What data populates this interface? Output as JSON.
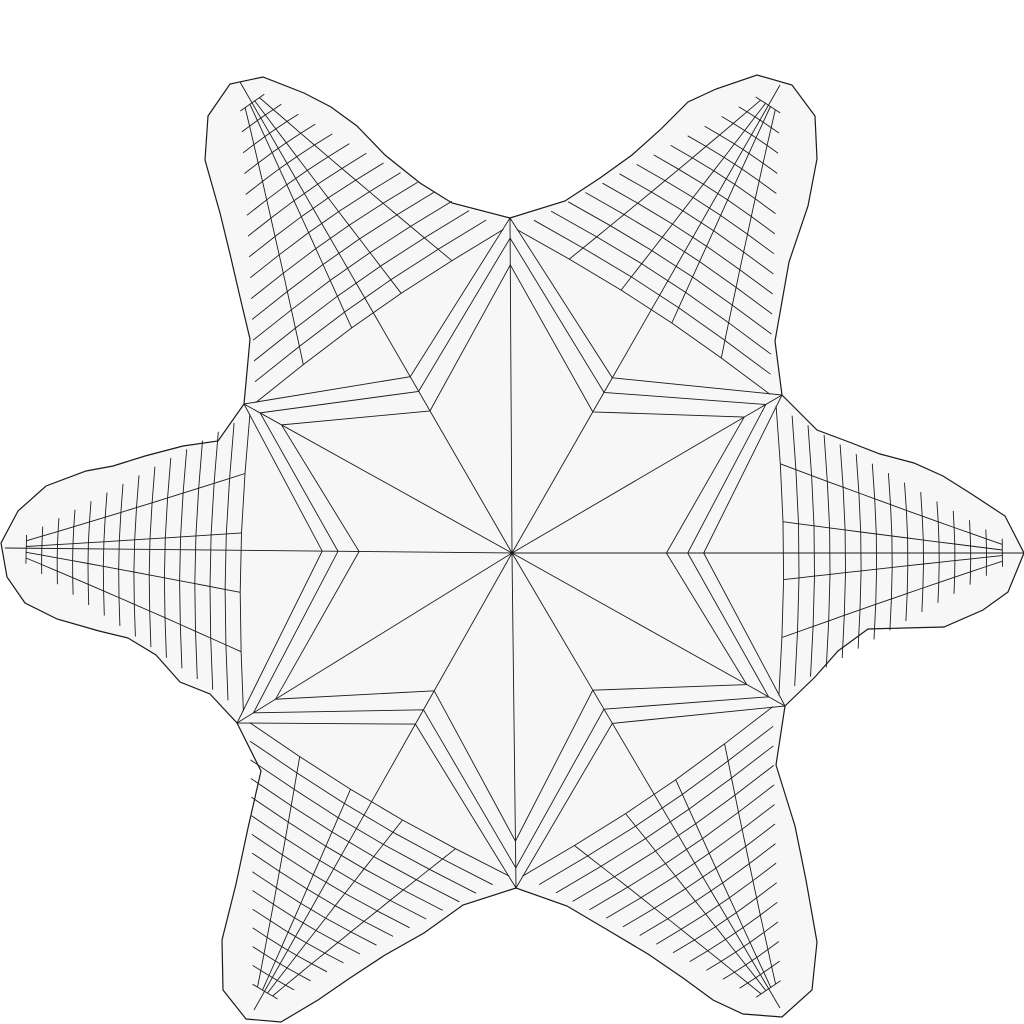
{
  "figure": {
    "description_visible_text": "",
    "colors": {
      "background": "#ffffff",
      "fill": "#f7f7f7",
      "stroke": "#1a1a1a"
    },
    "shape": "six-armed-star",
    "arms": 6,
    "rings_per_arm": 14
  }
}
